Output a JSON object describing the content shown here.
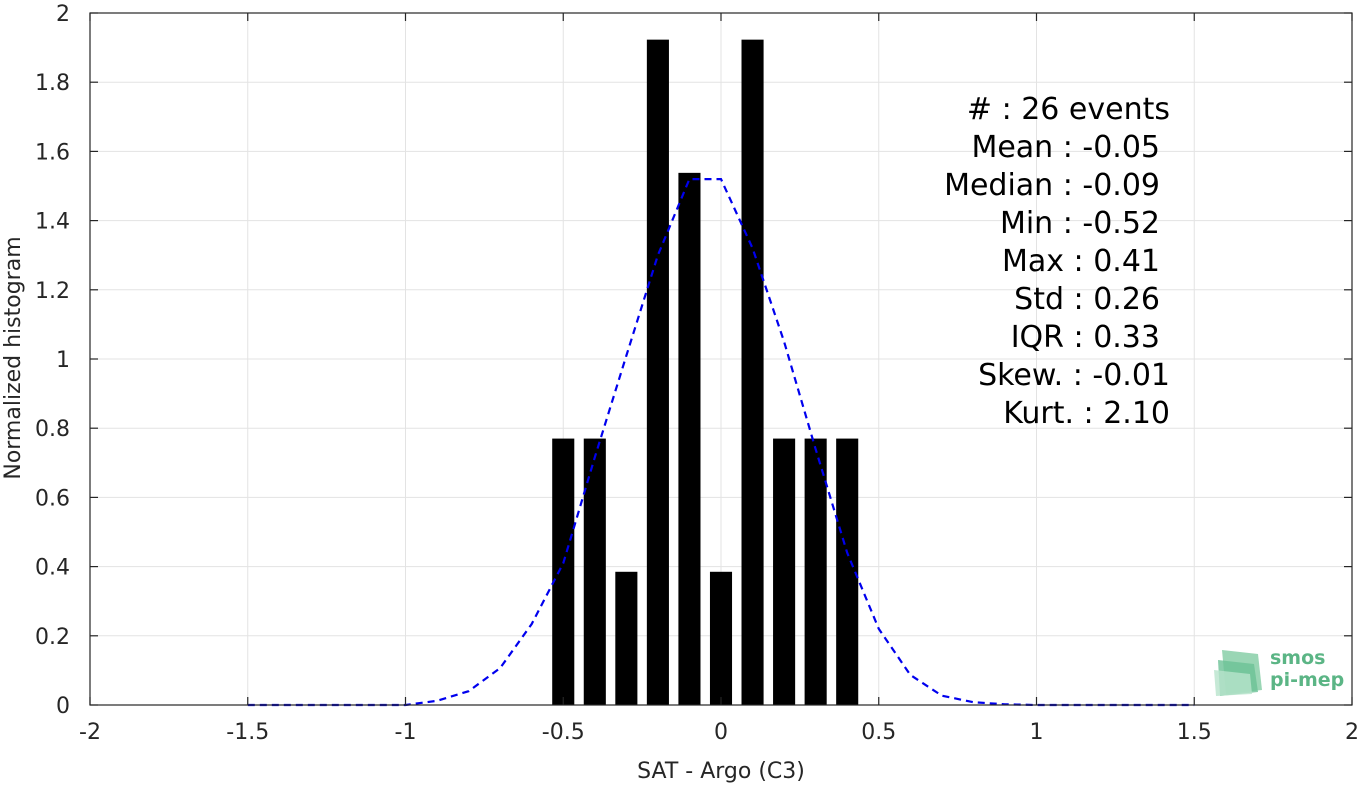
{
  "chart_data": {
    "type": "bar",
    "xlabel": "SAT - Argo (C3)",
    "ylabel": "Normalized histogram",
    "xlim": [
      -2,
      2
    ],
    "ylim": [
      0,
      2
    ],
    "xticks": [
      -2,
      -1.5,
      -1,
      -0.5,
      0,
      0.5,
      1,
      1.5,
      2
    ],
    "xtick_labels": [
      "-2",
      "-1.5",
      "-1",
      "-0.5",
      "0",
      "0.5",
      "1",
      "1.5",
      "2"
    ],
    "yticks": [
      0,
      0.2,
      0.4,
      0.6,
      0.8,
      1,
      1.2,
      1.4,
      1.6,
      1.8,
      2
    ],
    "ytick_labels": [
      "0",
      "0.2",
      "0.4",
      "0.6",
      "0.8",
      "1",
      "1.2",
      "1.4",
      "1.6",
      "1.8",
      "2"
    ],
    "grid": true,
    "bar_color": "#000000",
    "bin_width": 0.07,
    "bars": [
      {
        "x": -0.5,
        "value": 0.77
      },
      {
        "x": -0.4,
        "value": 0.77
      },
      {
        "x": -0.3,
        "value": 0.385
      },
      {
        "x": -0.2,
        "value": 1.923
      },
      {
        "x": -0.1,
        "value": 1.538
      },
      {
        "x": 0.0,
        "value": 0.385
      },
      {
        "x": 0.1,
        "value": 1.923
      },
      {
        "x": 0.2,
        "value": 0.77
      },
      {
        "x": 0.3,
        "value": 0.77
      },
      {
        "x": 0.4,
        "value": 0.77
      }
    ],
    "fit_curve": {
      "color": "#0000ee",
      "style": "dashed",
      "x": [
        -1.5,
        -1.0,
        -0.9,
        -0.8,
        -0.7,
        -0.6,
        -0.5,
        -0.4,
        -0.3,
        -0.2,
        -0.1,
        0.0,
        0.1,
        0.2,
        0.3,
        0.4,
        0.5,
        0.6,
        0.7,
        0.8,
        0.9,
        1.0,
        1.5
      ],
      "y": [
        0.0,
        0.0,
        0.012,
        0.04,
        0.107,
        0.234,
        0.41,
        0.716,
        1.01,
        1.3,
        1.52,
        1.52,
        1.32,
        1.05,
        0.74,
        0.44,
        0.22,
        0.087,
        0.027,
        0.008,
        0.002,
        0.0,
        0.0
      ]
    },
    "annotations": [
      "#  : 26 events",
      "Mean : -0.05",
      "Median : -0.09",
      "Min : -0.52",
      "Max : 0.41",
      "Std : 0.26",
      "IQR : 0.33",
      "Skew. : -0.01",
      "Kurt. : 2.10"
    ]
  },
  "logo": {
    "line1": "smos",
    "line2": "pi-mep",
    "color": "#5bb585"
  }
}
